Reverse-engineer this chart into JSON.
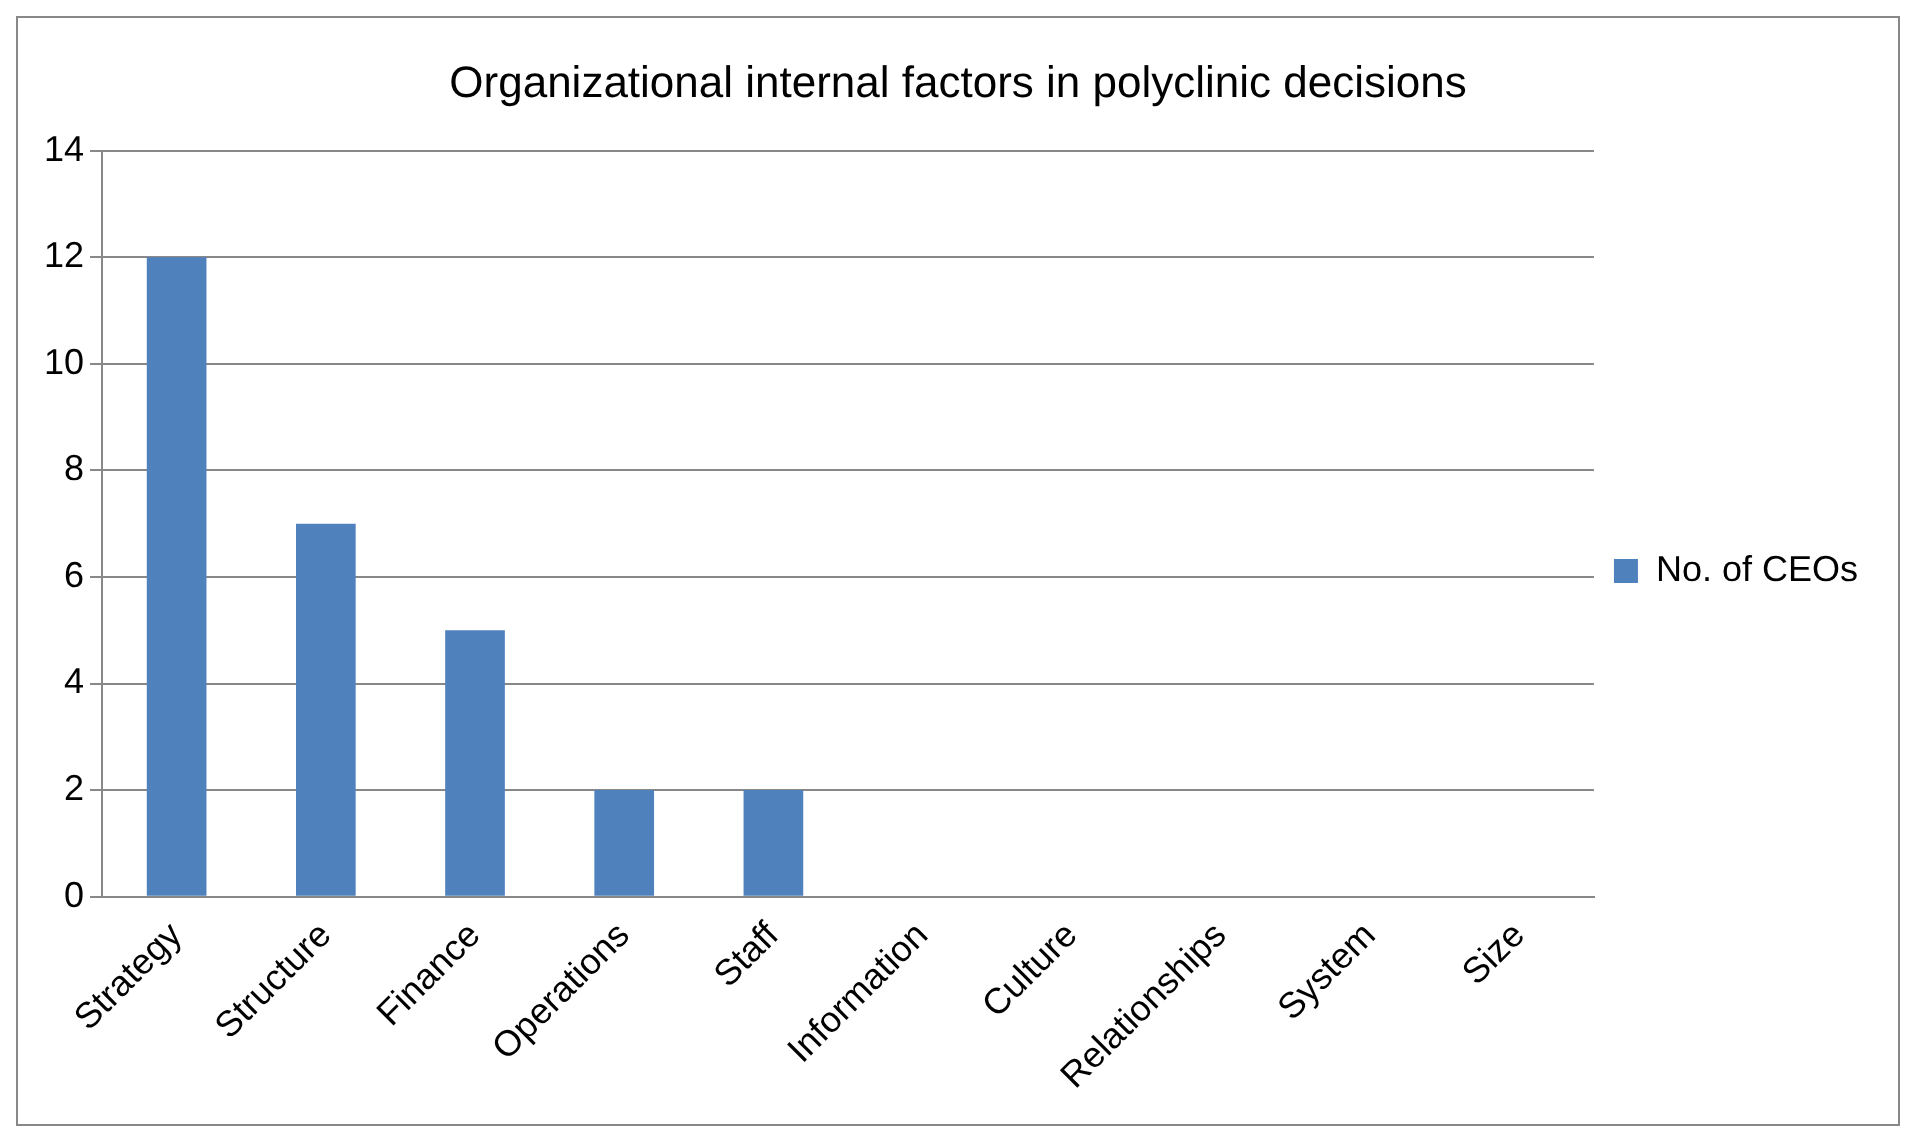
{
  "chart_data": {
    "type": "bar",
    "title": "Organizational internal factors in polyclinic decisions",
    "categories": [
      "Strategy",
      "Structure",
      "Finance",
      "Operations",
      "Staff",
      "Information",
      "Culture",
      "Relationships",
      "System",
      "Size"
    ],
    "series": [
      {
        "name": "No. of CEOs",
        "color": "#4f81bd",
        "values": [
          12,
          7,
          5,
          2,
          2,
          0,
          0,
          0,
          0,
          0
        ]
      }
    ],
    "ylim": [
      0,
      14
    ],
    "yticks": [
      0,
      2,
      4,
      6,
      8,
      10,
      12,
      14
    ],
    "grid": "y",
    "legend": "right"
  }
}
